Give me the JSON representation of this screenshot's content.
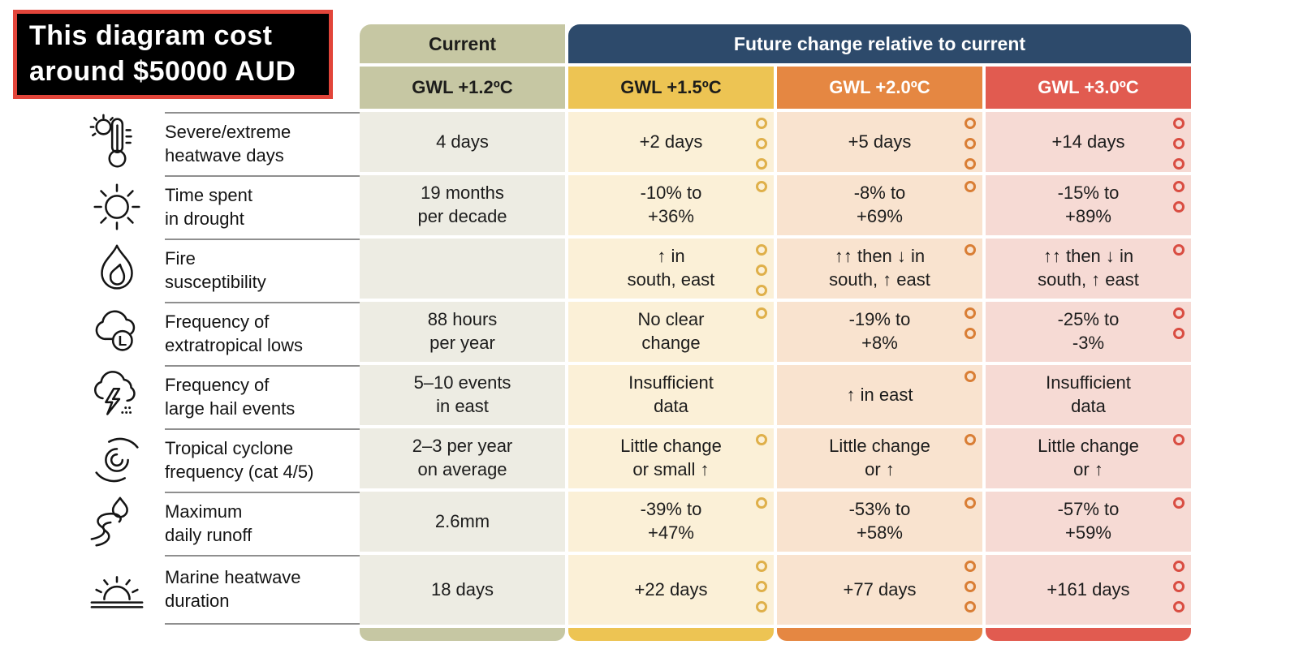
{
  "banner": {
    "text": "This diagram cost around $50000 AUD"
  },
  "table": {
    "current_header": "Current",
    "future_header": "Future change relative to current",
    "future_header_bg": "#2d4a6b",
    "future_header_fg": "#ffffff",
    "columns": [
      {
        "label": "GWL +1.2ºC",
        "header_bg": "#c6c7a3",
        "header_fg": "#1d1d1b",
        "cell_bg": "#edece3",
        "footer_bg": "#c6c7a3",
        "ring": "none"
      },
      {
        "label": "GWL +1.5ºC",
        "header_bg": "#edc453",
        "header_fg": "#1d1d1b",
        "cell_bg": "#fbf0d7",
        "footer_bg": "#edc453",
        "ring": "#dfb04a"
      },
      {
        "label": "GWL +2.0ºC",
        "header_bg": "#e58742",
        "header_fg": "#ffffff",
        "cell_bg": "#f9e3cf",
        "footer_bg": "#e58742",
        "ring": "#d97e35"
      },
      {
        "label": "GWL +3.0ºC",
        "header_bg": "#e15b50",
        "header_fg": "#ffffff",
        "cell_bg": "#f6dad4",
        "footer_bg": "#e15b50",
        "ring": "#d94d42"
      }
    ],
    "rows": [
      {
        "icon": "heatwave-icon",
        "label": "Severe/extreme\nheatwave days",
        "cells": [
          {
            "text": "4 days",
            "dots": 0
          },
          {
            "text": "+2 days",
            "dots": 3
          },
          {
            "text": "+5 days",
            "dots": 3
          },
          {
            "text": "+14 days",
            "dots": 3
          }
        ]
      },
      {
        "icon": "drought-sun-icon",
        "label": "Time spent\nin drought",
        "cells": [
          {
            "text": "19 months\nper decade",
            "dots": 0
          },
          {
            "text": "-10% to\n+36%",
            "dots": 1
          },
          {
            "text": "-8% to\n+69%",
            "dots": 1
          },
          {
            "text": "-15% to\n+89%",
            "dots": 2
          }
        ]
      },
      {
        "icon": "fire-icon",
        "label": "Fire\nsusceptibility",
        "cells": [
          {
            "text": "",
            "dots": 0
          },
          {
            "text": "↑ in\nsouth, east",
            "dots": 3
          },
          {
            "text": "↑↑ then ↓ in\nsouth, ↑ east",
            "dots": 1
          },
          {
            "text": "↑↑ then ↓ in\nsouth, ↑ east",
            "dots": 1
          }
        ]
      },
      {
        "icon": "extratropical-low-icon",
        "label": "Frequency of\nextratropical lows",
        "cells": [
          {
            "text": "88 hours\nper year",
            "dots": 0
          },
          {
            "text": "No clear\nchange",
            "dots": 1
          },
          {
            "text": "-19% to\n+8%",
            "dots": 2
          },
          {
            "text": "-25% to\n-3%",
            "dots": 2
          }
        ]
      },
      {
        "icon": "hail-storm-icon",
        "label": "Frequency of\nlarge hail events",
        "cells": [
          {
            "text": "5–10 events\nin east",
            "dots": 0
          },
          {
            "text": "Insufficient\ndata",
            "dots": 0
          },
          {
            "text": "↑ in east",
            "dots": 1
          },
          {
            "text": "Insufficient\ndata",
            "dots": 0
          }
        ]
      },
      {
        "icon": "cyclone-icon",
        "label": "Tropical cyclone\nfrequency (cat 4/5)",
        "cells": [
          {
            "text": "2–3 per year\non average",
            "dots": 0
          },
          {
            "text": "Little change\nor small ↑",
            "dots": 1
          },
          {
            "text": "Little change\nor ↑",
            "dots": 1
          },
          {
            "text": "Little change\nor ↑",
            "dots": 1
          }
        ]
      },
      {
        "icon": "runoff-icon",
        "label": "Maximum\ndaily runoff",
        "cells": [
          {
            "text": "2.6mm",
            "dots": 0
          },
          {
            "text": "-39% to\n+47%",
            "dots": 1
          },
          {
            "text": "-53% to\n+58%",
            "dots": 1
          },
          {
            "text": "-57% to\n+59%",
            "dots": 1
          }
        ]
      },
      {
        "icon": "marine-heatwave-icon",
        "label": "Marine heatwave\nduration",
        "cells": [
          {
            "text": "18 days",
            "dots": 0
          },
          {
            "text": "+22 days",
            "dots": 3
          },
          {
            "text": "+77 days",
            "dots": 3
          },
          {
            "text": "+161 days",
            "dots": 3
          }
        ]
      }
    ]
  }
}
